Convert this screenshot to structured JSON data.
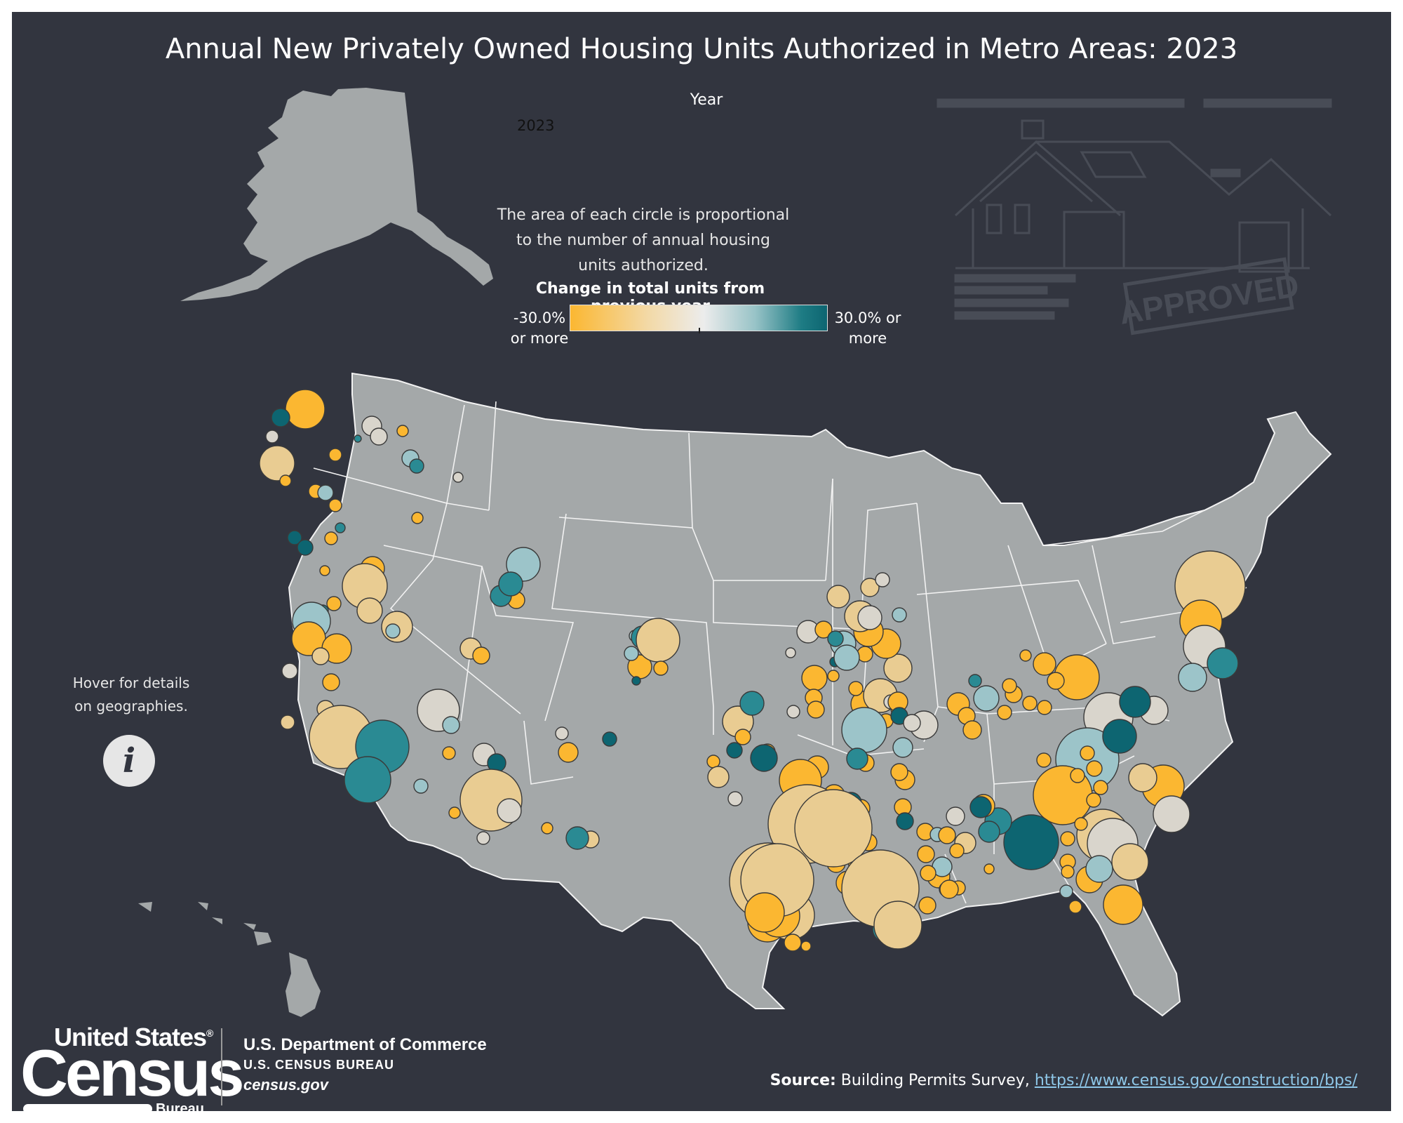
{
  "title": "Annual New Privately Owned Housing Units Authorized in Metro Areas: 2023",
  "year_filter": {
    "label": "Year",
    "value": "2023"
  },
  "size_note": "The area of each circle is proportional to the number of annual housing units authorized.",
  "color_legend": {
    "title": "Change in total units from previous year",
    "min_label": "-30.0% or more",
    "max_label": "30.0% or more",
    "colors": [
      "#fbb731",
      "#f3d9a6",
      "#ececec",
      "#98c3c7",
      "#0d6571"
    ]
  },
  "hover_note": "Hover for details on geographies.",
  "decoration": {
    "stamp_text": "APPROVED"
  },
  "map_colors": {
    "land": "#a4a8a9",
    "border": "#f2f2f2",
    "background": "#32353f"
  },
  "branding": {
    "logo_line1": "United States",
    "logo_registered": "®",
    "logo_line2": "Census",
    "logo_line3": "Bureau",
    "dept_line1": "U.S. Department of Commerce",
    "dept_line2": "U.S. CENSUS BUREAU",
    "dept_line3": "census.gov"
  },
  "source": {
    "label": "Source:",
    "text": "Building Permits Survey,",
    "link": "https://www.census.gov/construction/bps/"
  }
}
